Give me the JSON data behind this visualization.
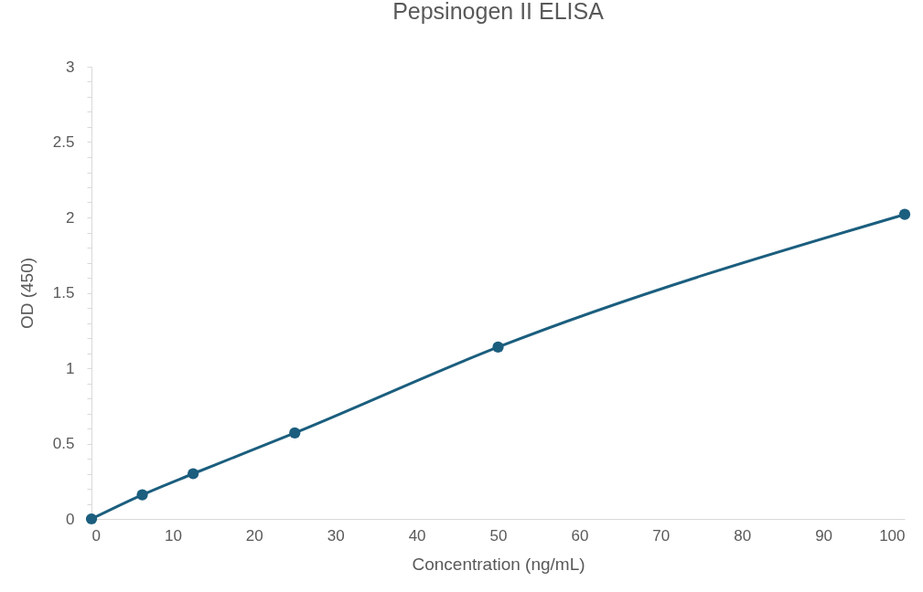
{
  "chart_data": {
    "type": "line",
    "title": "Pepsinogen II ELISA",
    "xlabel": "Concentration (ng/mL)",
    "ylabel": "OD (450)",
    "x": [
      0,
      6.25,
      12.5,
      25,
      50,
      100
    ],
    "series": [
      {
        "color": "#1b5e7e",
        "values": [
          0,
          0.16,
          0.3,
          0.57,
          1.14,
          2.02
        ]
      }
    ],
    "xlim": [
      0,
      100
    ],
    "xticks": [
      0,
      10,
      20,
      30,
      40,
      50,
      60,
      70,
      80,
      90,
      100
    ],
    "ylim": [
      0,
      3
    ],
    "yticks": [
      0,
      {
        "value": 0.1,
        "label": null
      },
      {
        "value": 0.2,
        "label": null
      },
      {
        "value": 0.3,
        "label": null
      },
      {
        "value": 0.4,
        "label": null
      },
      0.5,
      {
        "value": 0.6,
        "label": null
      },
      {
        "value": 0.7,
        "label": null
      },
      {
        "value": 0.8,
        "label": null
      },
      {
        "value": 0.9,
        "label": null
      },
      1,
      {
        "value": 1.1,
        "label": null
      },
      {
        "value": 1.2,
        "label": null
      },
      {
        "value": 1.3,
        "label": null
      },
      {
        "value": 1.4,
        "label": null
      },
      1.5,
      {
        "value": 1.6,
        "label": null
      },
      {
        "value": 1.7,
        "label": null
      },
      {
        "value": 1.8,
        "label": null
      },
      {
        "value": 1.9,
        "label": null
      },
      2,
      {
        "value": 2.1,
        "label": null
      },
      {
        "value": 2.2,
        "label": null
      },
      {
        "value": 2.3,
        "label": null
      },
      {
        "value": 2.4,
        "label": null
      },
      2.5,
      {
        "value": 2.6,
        "label": null
      },
      {
        "value": 2.7,
        "label": null
      },
      {
        "value": 2.8,
        "label": null
      },
      {
        "value": 2.9,
        "label": null
      },
      3
    ],
    "grid": false,
    "legend": false,
    "marker": "circle",
    "line_style": "solid"
  }
}
